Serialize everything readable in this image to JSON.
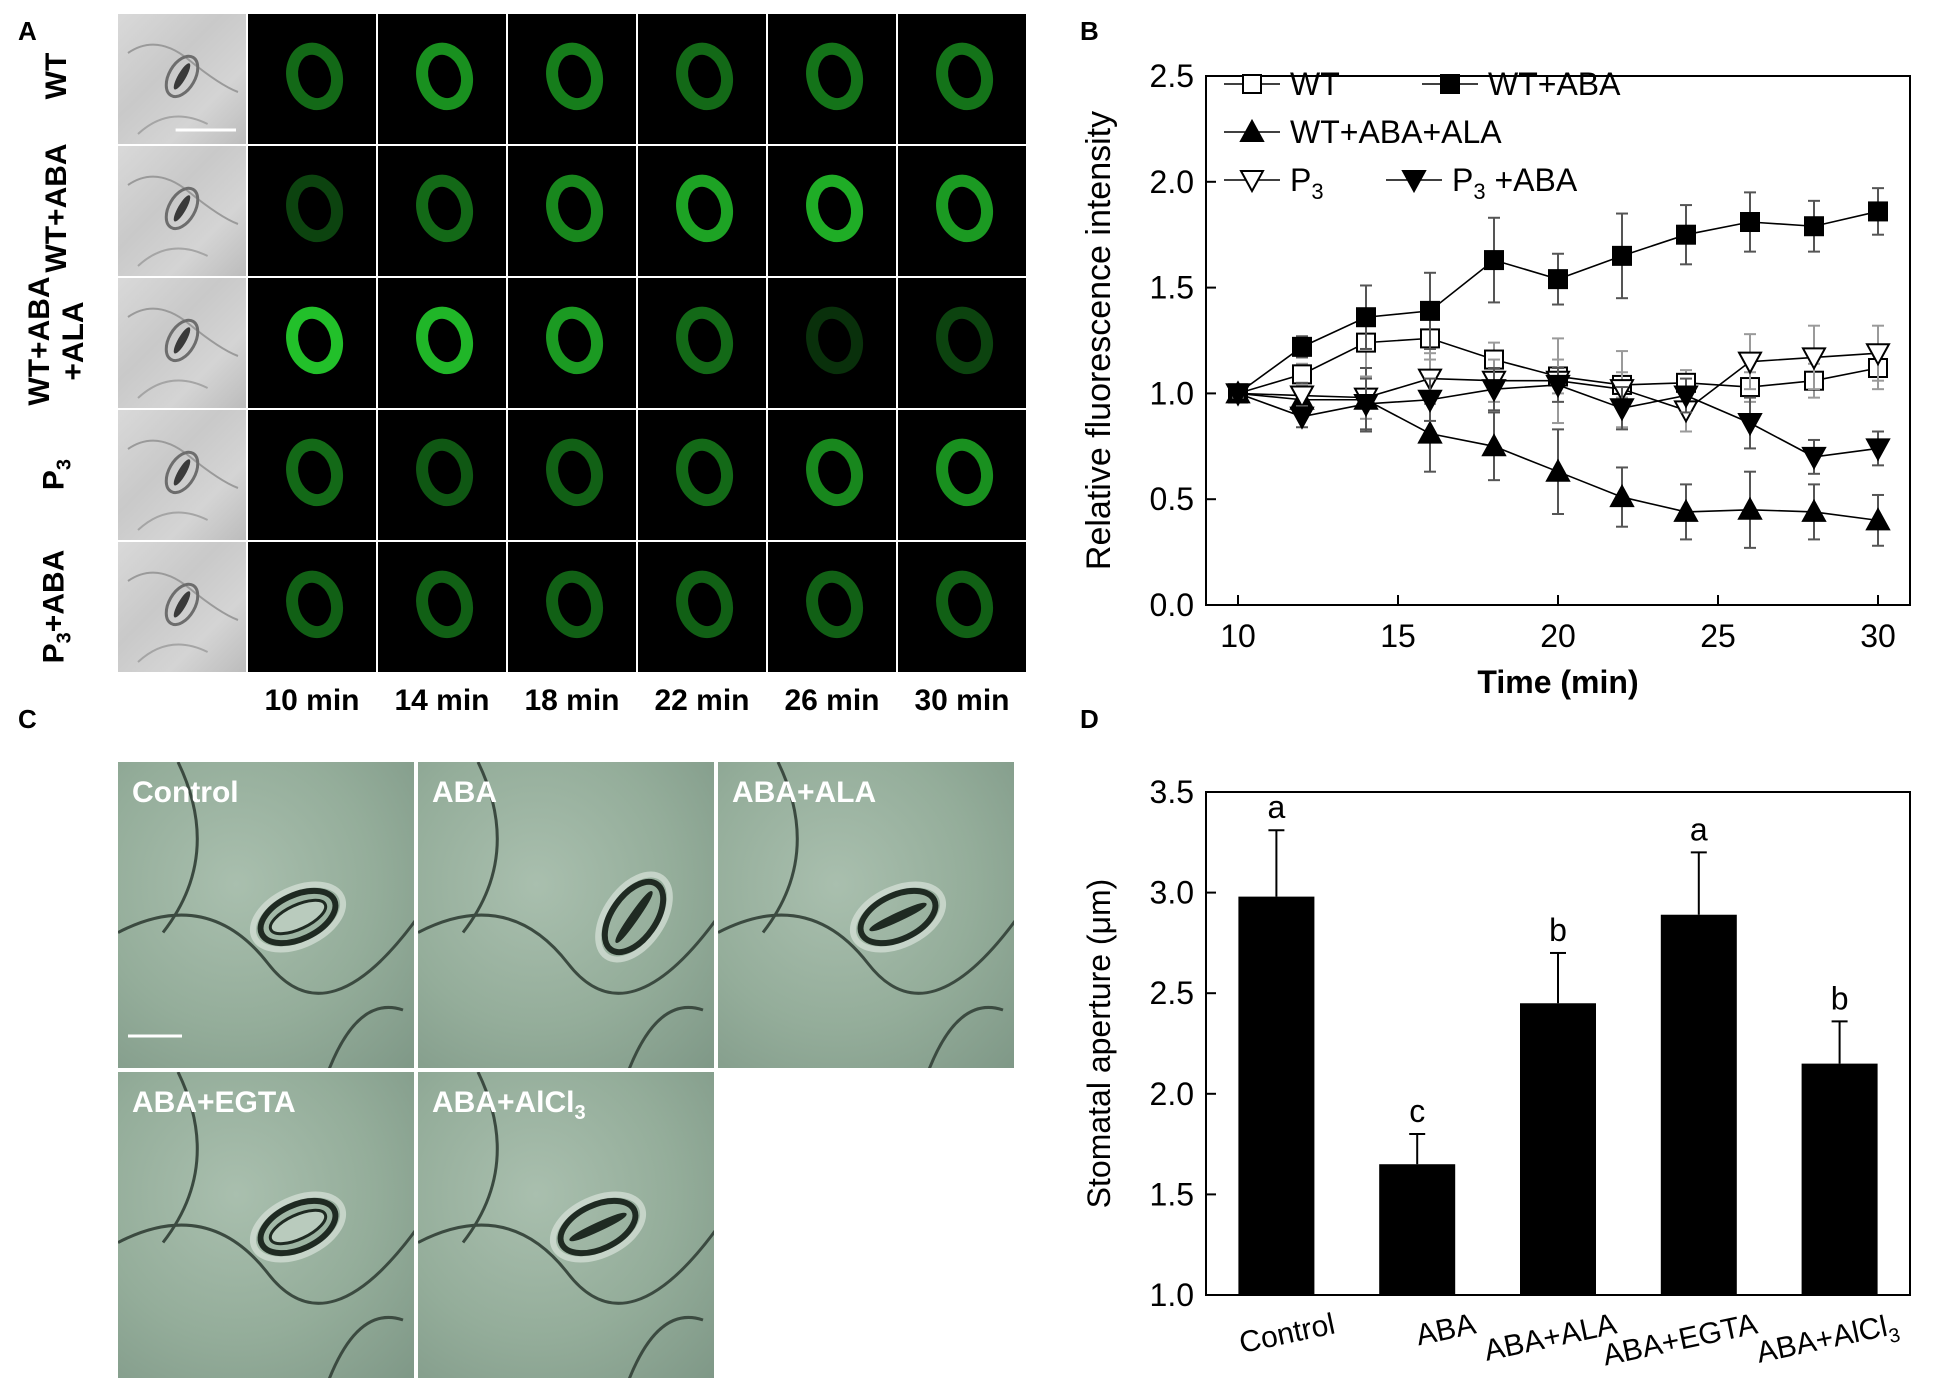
{
  "panel_letters": {
    "a": "A",
    "b": "B",
    "c": "C",
    "d": "D"
  },
  "panelA": {
    "rows": [
      "WT",
      "WT+ABA",
      "WT+ABA+ALA",
      "P3",
      "P3+ABA"
    ],
    "row_label_lines": [
      [
        "WT"
      ],
      [
        "WT+ABA"
      ],
      [
        "WT+ABA",
        "+ALA"
      ],
      [
        "P3"
      ],
      [
        "P3+ABA"
      ]
    ],
    "times": [
      "10 min",
      "14 min",
      "18 min",
      "22 min",
      "26 min",
      "30 min"
    ],
    "fluorescence_color": "#22c02a",
    "signal_intensity": [
      [
        0.55,
        0.75,
        0.65,
        0.55,
        0.6,
        0.6
      ],
      [
        0.35,
        0.55,
        0.7,
        0.85,
        0.9,
        0.8
      ],
      [
        1.0,
        0.95,
        0.8,
        0.55,
        0.25,
        0.35
      ],
      [
        0.55,
        0.45,
        0.5,
        0.55,
        0.7,
        0.75
      ],
      [
        0.5,
        0.5,
        0.5,
        0.5,
        0.5,
        0.5
      ]
    ]
  },
  "panelC": {
    "images": [
      "Control",
      "ABA",
      "ABA+ALA",
      "ABA+EGTA",
      "ABA+AlCl3"
    ],
    "image_labels_display": [
      "Control",
      "ABA",
      "ABA+ALA",
      "ABA+EGTA",
      "ABA+AlCl"
    ],
    "subscript_last": "3"
  },
  "chart_data": [
    {
      "type": "line",
      "panel": "B",
      "xlabel": "Time (min)",
      "ylabel": "Relative fluorescence intensity",
      "xlim": [
        9,
        31
      ],
      "ylim": [
        0.0,
        2.5
      ],
      "xticks": [
        10,
        15,
        20,
        25,
        30
      ],
      "yticks": [
        "0.0",
        "0.5",
        "1.0",
        "1.5",
        "2.0",
        "2.5"
      ],
      "x": [
        10,
        12,
        14,
        16,
        18,
        20,
        22,
        24,
        26,
        28,
        30
      ],
      "legend_position": "top-left",
      "legend": {
        "row1": [
          "WT",
          "WT+ABA"
        ],
        "row2": [
          "WT+ABA+ALA"
        ],
        "row3": [
          "P",
          "+ABA"
        ],
        "p_sub": "3"
      },
      "series": [
        {
          "name": "WT",
          "marker": "square-open",
          "values": [
            1.0,
            1.09,
            1.24,
            1.26,
            1.16,
            1.08,
            1.04,
            1.05,
            1.03,
            1.06,
            1.12
          ],
          "errors": [
            0.02,
            0.05,
            0.12,
            0.1,
            0.08,
            0.08,
            0.06,
            0.06,
            0.07,
            0.08,
            0.1
          ]
        },
        {
          "name": "WT+ABA",
          "marker": "square-filled",
          "values": [
            1.0,
            1.22,
            1.36,
            1.39,
            1.63,
            1.54,
            1.65,
            1.75,
            1.81,
            1.79,
            1.86
          ],
          "errors": [
            0.02,
            0.05,
            0.15,
            0.18,
            0.2,
            0.12,
            0.2,
            0.14,
            0.14,
            0.12,
            0.11
          ]
        },
        {
          "name": "WT+ABA+ALA",
          "marker": "triangle-up-filled",
          "values": [
            1.0,
            0.97,
            0.97,
            0.81,
            0.75,
            0.63,
            0.51,
            0.44,
            0.45,
            0.44,
            0.4
          ],
          "errors": [
            0.02,
            0.08,
            0.15,
            0.18,
            0.16,
            0.2,
            0.14,
            0.13,
            0.18,
            0.13,
            0.12
          ]
        },
        {
          "name": "P3",
          "marker": "triangle-down-open",
          "values": [
            1.0,
            0.99,
            0.98,
            1.07,
            1.06,
            1.06,
            1.02,
            0.92,
            1.15,
            1.17,
            1.19
          ],
          "errors": [
            0.02,
            0.05,
            0.1,
            0.12,
            0.1,
            0.2,
            0.18,
            0.1,
            0.13,
            0.15,
            0.13
          ]
        },
        {
          "name": "P3+ABA",
          "marker": "triangle-down-filled",
          "values": [
            1.0,
            0.89,
            0.95,
            0.97,
            1.02,
            1.04,
            0.93,
            0.99,
            0.86,
            0.7,
            0.74
          ],
          "errors": [
            0.02,
            0.05,
            0.12,
            0.1,
            0.1,
            0.08,
            0.1,
            0.08,
            0.12,
            0.08,
            0.08
          ]
        }
      ]
    },
    {
      "type": "bar",
      "panel": "D",
      "xlabel": "",
      "ylabel": "Stomatal aperture (μm)",
      "ylim": [
        1.0,
        3.5
      ],
      "yticks": [
        "1.0",
        "1.5",
        "2.0",
        "2.5",
        "3.0",
        "3.5"
      ],
      "categories": [
        "Control",
        "ABA",
        "ABA+ALA",
        "ABA+EGTA",
        "ABA+AlCl3"
      ],
      "category_labels_display": [
        "Control",
        "ABA",
        "ABA+ALA",
        "ABA+EGTA",
        "ABA+AlCl"
      ],
      "last_sub": "3",
      "values": [
        2.98,
        1.65,
        2.45,
        2.89,
        2.15
      ],
      "errors": [
        0.33,
        0.15,
        0.25,
        0.31,
        0.21
      ],
      "letters": [
        "a",
        "c",
        "b",
        "a",
        "b"
      ],
      "bar_color": "#000000"
    }
  ]
}
